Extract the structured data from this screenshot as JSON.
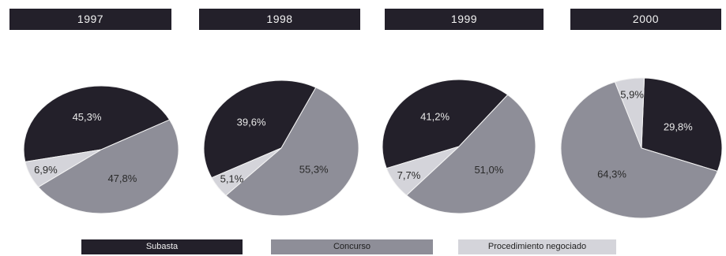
{
  "chart_data": [
    {
      "type": "pie",
      "title": "1997",
      "categories": [
        "Subasta",
        "Concurso",
        "Procedimiento negociado"
      ],
      "values": [
        45.3,
        47.8,
        6.9
      ],
      "labels": [
        "45,3%",
        "47,8%",
        "6,9%"
      ]
    },
    {
      "type": "pie",
      "title": "1998",
      "categories": [
        "Subasta",
        "Concurso",
        "Procedimiento negociado"
      ],
      "values": [
        39.6,
        55.3,
        5.1
      ],
      "labels": [
        "39,6%",
        "55,3%",
        "5,1%"
      ]
    },
    {
      "type": "pie",
      "title": "1999",
      "categories": [
        "Subasta",
        "Concurso",
        "Procedimiento negociado"
      ],
      "values": [
        41.2,
        51.0,
        7.7
      ],
      "labels": [
        "41,2%",
        "51,0%",
        "7,7%"
      ]
    },
    {
      "type": "pie",
      "title": "2000",
      "categories": [
        "Subasta",
        "Concurso",
        "Procedimiento negociado"
      ],
      "values": [
        29.8,
        64.3,
        5.9
      ],
      "labels": [
        "29,8%",
        "64,3%",
        "5,9%"
      ]
    }
  ],
  "legend": [
    {
      "label": "Subasta",
      "color": "#23202a"
    },
    {
      "label": "Concurso",
      "color": "#8e8e98"
    },
    {
      "label": "Procedimiento negociado",
      "color": "#d4d4da"
    }
  ],
  "colors": {
    "subasta": "#23202a",
    "concurso": "#8e8e98",
    "procedimiento": "#d4d4da",
    "label_on_dark": "#e8e8e8",
    "label_on_light": "#2a2a2a"
  }
}
